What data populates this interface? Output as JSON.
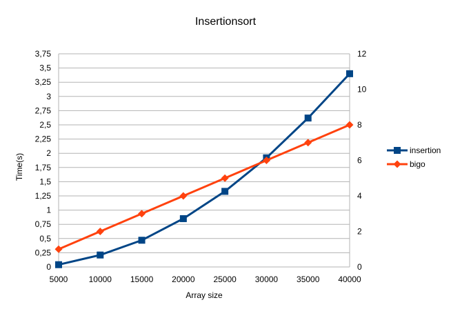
{
  "chart_data": {
    "type": "line",
    "title": "Insertionsort",
    "xlabel": "Array size",
    "ylabel": "Time(s)",
    "y2label": "",
    "x": [
      5000,
      10000,
      15000,
      20000,
      25000,
      30000,
      35000,
      40000
    ],
    "xticks": [
      "5000",
      "10000",
      "15000",
      "20000",
      "25000",
      "30000",
      "35000",
      "40000"
    ],
    "ylim": [
      0,
      3.75
    ],
    "yticks": [
      "0",
      "0,25",
      "0,5",
      "0,75",
      "1",
      "1,25",
      "1,5",
      "1,75",
      "2",
      "2,25",
      "2,5",
      "2,75",
      "3",
      "3,25",
      "3,5",
      "3,75"
    ],
    "y2lim": [
      0,
      12
    ],
    "y2ticks": [
      "0",
      "2",
      "4",
      "6",
      "8",
      "10",
      "12"
    ],
    "grid": true,
    "legend_position": "right",
    "series": [
      {
        "name": "insertion",
        "axis": "left",
        "marker": "square",
        "color": "#004586",
        "values": [
          0.04,
          0.21,
          0.47,
          0.85,
          1.33,
          1.92,
          2.62,
          3.4
        ]
      },
      {
        "name": "bigo",
        "axis": "right",
        "marker": "diamond",
        "color": "#ff420e",
        "values": [
          1,
          2,
          3,
          4,
          5,
          6,
          7,
          8
        ]
      }
    ]
  }
}
